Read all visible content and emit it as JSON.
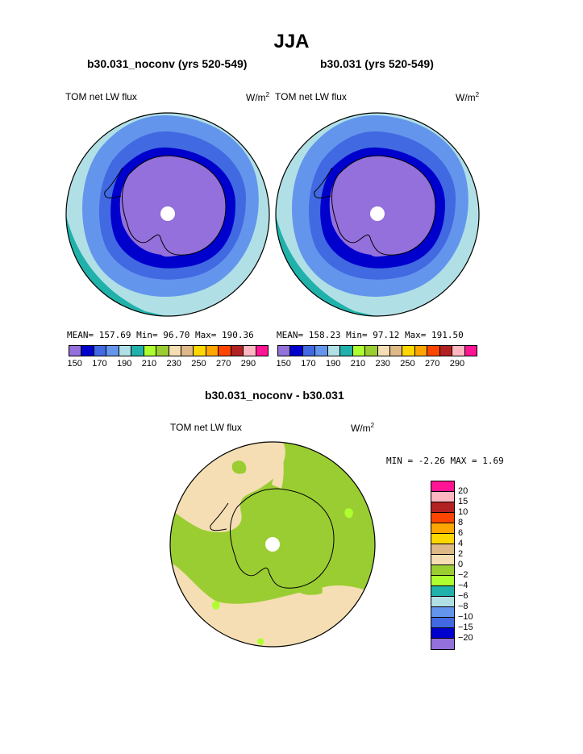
{
  "main_title": "JJA",
  "panels": [
    {
      "title": "b30.031_noconv (yrs 520-549)",
      "variable": "TOM net LW flux",
      "units_base": "W/m",
      "units_exp": "2",
      "stats_text": "MEAN= 157.69  Min=  96.70  Max= 190.36"
    },
    {
      "title": "b30.031 (yrs 520-549)",
      "variable": "TOM net LW flux",
      "units_base": "W/m",
      "units_exp": "2",
      "stats_text": "MEAN= 158.23  Min=  97.12  Max= 191.50"
    }
  ],
  "abs_colorbar": {
    "colors": [
      "#9370db",
      "#0000cd",
      "#4169e1",
      "#6495ed",
      "#b0e0e6",
      "#20b2aa",
      "#adff2f",
      "#9acd32",
      "#f5deb3",
      "#deb887",
      "#ffd700",
      "#ffa500",
      "#ff4500",
      "#b22222",
      "#ffb6c1",
      "#ff1493"
    ],
    "tick_labels": [
      "150",
      "170",
      "190",
      "210",
      "230",
      "250",
      "270",
      "290"
    ]
  },
  "diff": {
    "title": "b30.031_noconv - b30.031",
    "variable": "TOM net LW flux",
    "units_base": "W/m",
    "units_exp": "2",
    "minmax_text": "MIN =  -2.26 MAX =   1.69"
  },
  "diff_colorbar": {
    "colors": [
      "#ff1493",
      "#ffb6c1",
      "#b22222",
      "#ff4500",
      "#ffa500",
      "#ffd700",
      "#deb887",
      "#f5deb3",
      "#9acd32",
      "#adff2f",
      "#20b2aa",
      "#b0e0e6",
      "#6495ed",
      "#4169e1",
      "#0000cd",
      "#9370db"
    ],
    "tick_labels": [
      "20",
      "15",
      "10",
      "8",
      "6",
      "4",
      "2",
      "0",
      "−2",
      "−4",
      "−6",
      "−8",
      "−10",
      "−15",
      "−20"
    ]
  },
  "colors": {
    "ice": "#9370db",
    "ring_dark": "#0000cd",
    "ring_mid": "#4169e1",
    "ring_light": "#6495ed",
    "ring_pale": "#b0e0e6",
    "ring_teal": "#20b2aa",
    "diff_green": "#9acd32",
    "diff_wheat": "#f5deb3",
    "diff_light_green": "#adff2f"
  }
}
